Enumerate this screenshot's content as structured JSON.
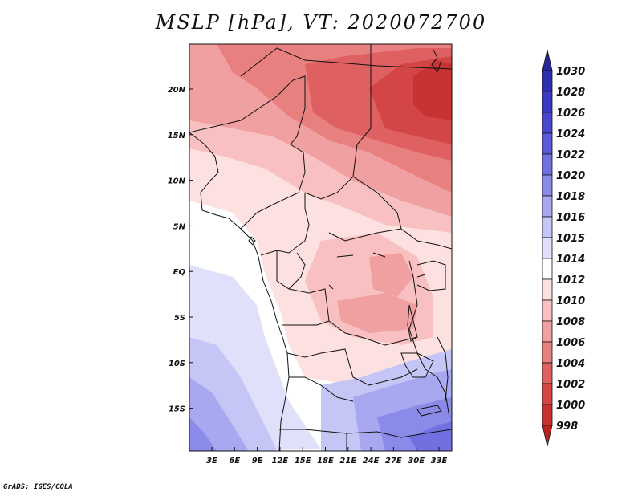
{
  "title": "MSLP [hPa], VT: 2020072700",
  "credit": "GrADS: IGES/COLA",
  "lon_ticks": [
    "3E",
    "6E",
    "9E",
    "12E",
    "15E",
    "18E",
    "21E",
    "24E",
    "27E",
    "30E",
    "33E"
  ],
  "lat_ticks": [
    "20N",
    "15N",
    "10N",
    "5N",
    "EQ",
    "5S",
    "10S",
    "15S"
  ],
  "colorbar": {
    "levels": [
      "1030",
      "1028",
      "1026",
      "1024",
      "1022",
      "1020",
      "1018",
      "1016",
      "1015",
      "1014",
      "1012",
      "1010",
      "1008",
      "1006",
      "1004",
      "1002",
      "1000",
      "998"
    ],
    "colors": [
      "#26259a",
      "#2d2db0",
      "#3a3ac2",
      "#4848cc",
      "#5a5ad6",
      "#7070e0",
      "#8a8ae8",
      "#a8a8f0",
      "#c6c6f6",
      "#e0e0fa",
      "#ffffff",
      "#fde0e0",
      "#f8c0c0",
      "#f0a0a0",
      "#e88080",
      "#de6060",
      "#d44646",
      "#c83232",
      "#b82222"
    ]
  }
}
